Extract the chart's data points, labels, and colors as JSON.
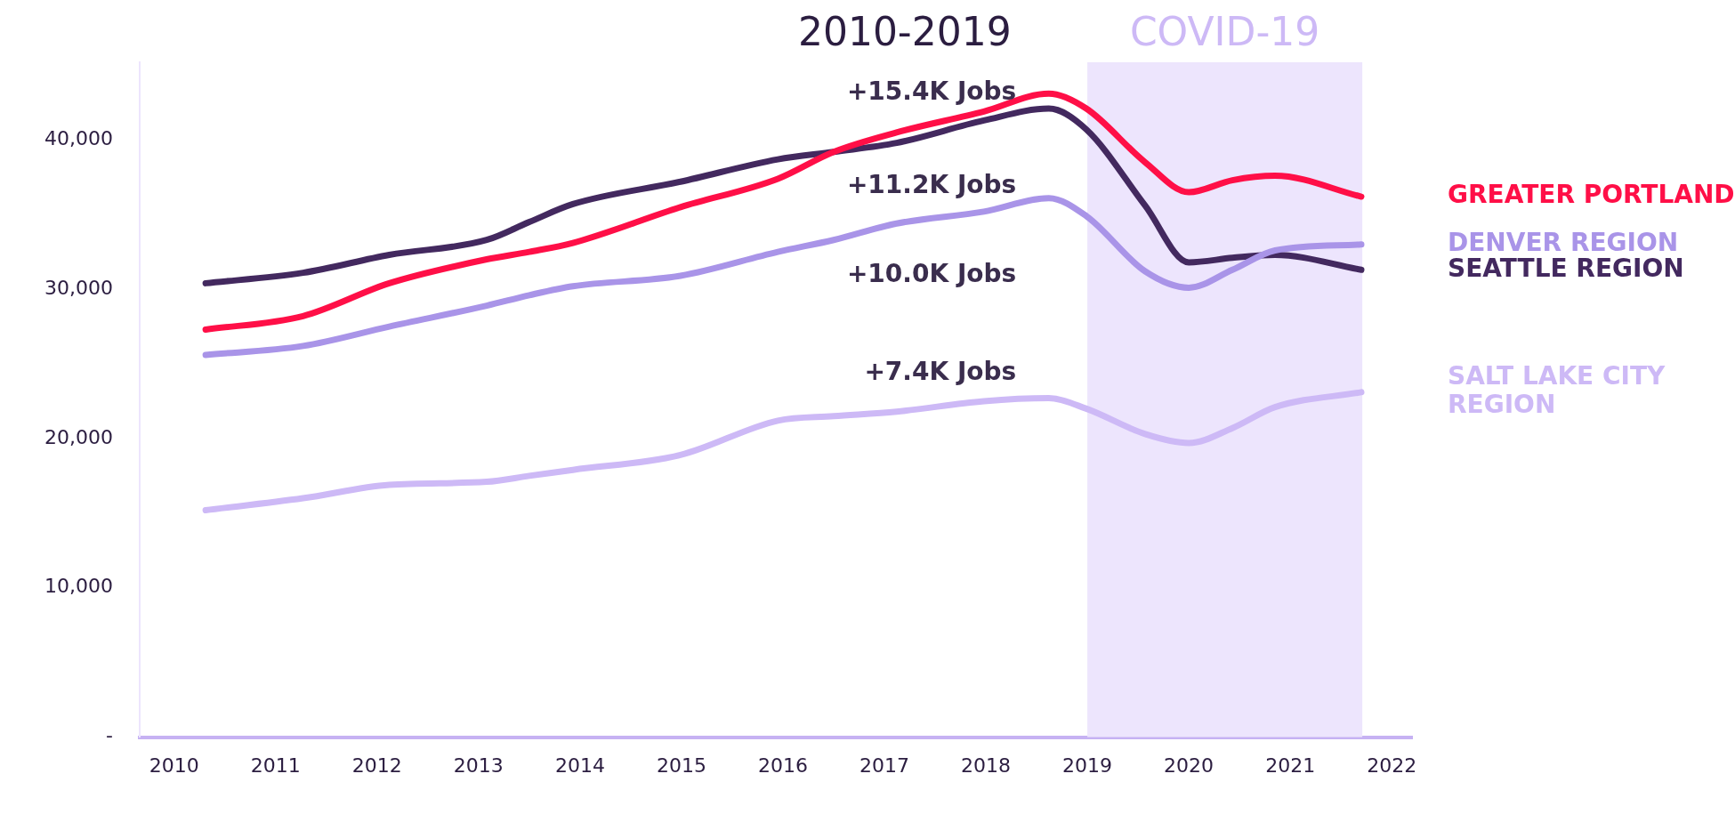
{
  "chart_data": {
    "type": "line",
    "annotations": [
      "2010-2019",
      "+15.4K Jobs",
      "+11.2K Jobs",
      "+10.0K Jobs",
      "+7.4K Jobs"
    ],
    "x": [
      2010.31,
      2011.27,
      2012.12,
      2013.08,
      2013.5,
      2013.93,
      2014.99,
      2015.95,
      2016.5,
      2017.12,
      2017.98,
      2018.62,
      2018.99,
      2019.57,
      2020.0,
      2020.43,
      2020.85,
      2021.7
    ],
    "series": [
      {
        "name": "GREATER PORTLAND",
        "color": "#ff0f47",
        "values": [
          27300,
          28200,
          30400,
          32000,
          32500,
          33100,
          35500,
          37400,
          39200,
          40500,
          41900,
          43100,
          42100,
          38500,
          36500,
          37300,
          37600,
          36200
        ]
      },
      {
        "name": "DENVER REGION",
        "color": "#a994e8",
        "values": [
          25600,
          26200,
          27500,
          28900,
          29600,
          30200,
          30900,
          32500,
          33300,
          34400,
          35200,
          36100,
          34900,
          31200,
          30100,
          31300,
          32600,
          33000
        ]
      },
      {
        "name": "SEATTLE REGION",
        "color": "#43295f",
        "values": [
          30400,
          31100,
          32300,
          33300,
          34500,
          35700,
          37200,
          38700,
          39200,
          39800,
          41300,
          42100,
          40700,
          35600,
          31800,
          32100,
          32300,
          31300
        ]
      },
      {
        "name": "SALT LAKE CITY REGION",
        "color": "#cdb9f6",
        "values": [
          15200,
          16000,
          16900,
          17100,
          17500,
          17900,
          18900,
          21200,
          21500,
          21800,
          22500,
          22700,
          22000,
          20300,
          19700,
          20700,
          22100,
          23100
        ]
      }
    ],
    "xlim": [
      2009.66,
      2022.2
    ],
    "xticks": [
      2010,
      2011,
      2012,
      2013,
      2014,
      2015,
      2016,
      2017,
      2018,
      2019,
      2020,
      2021,
      2022
    ],
    "ylim": [
      0,
      45200
    ],
    "yticks": [
      {
        "value": 0,
        "label": "-"
      },
      {
        "value": 10000,
        "label": "10,000"
      },
      {
        "value": 20000,
        "label": "20,000"
      },
      {
        "value": 30000,
        "label": "30,000"
      },
      {
        "value": 40000,
        "label": "40,000"
      }
    ],
    "bands": [
      {
        "axis": "x",
        "from": 2019.0,
        "to": 2021.71,
        "label": "COVID-19",
        "color": "#ede5fd"
      }
    ],
    "grid": false,
    "legend": false,
    "marker": "none",
    "line_style": "solid"
  }
}
